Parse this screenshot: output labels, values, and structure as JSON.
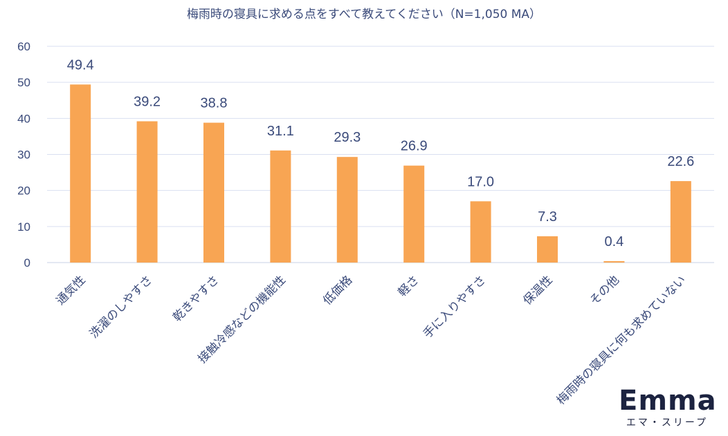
{
  "logo": {
    "text": "Emma",
    "subtext": "エマ・スリープ"
  },
  "chart_data": {
    "type": "bar",
    "title": "梅雨時の寝具に求める点をすべて教えてください（N=1,050 MA）",
    "categories": [
      "通気性",
      "洗濯のしやすさ",
      "乾きやすさ",
      "接触冷感などの機能性",
      "低価格",
      "軽さ",
      "手に入りやすさ",
      "保温性",
      "その他",
      "梅雨時の寝具に何も求めていない"
    ],
    "values": [
      49.4,
      39.2,
      38.8,
      31.1,
      29.3,
      26.9,
      17.0,
      7.3,
      0.4,
      22.6
    ],
    "value_labels": [
      "49.4",
      "39.2",
      "38.8",
      "31.1",
      "29.3",
      "26.9",
      "17.0",
      "7.3",
      "0.4",
      "22.6"
    ],
    "ylim": [
      0,
      60
    ],
    "yticks": [
      0,
      10,
      20,
      30,
      40,
      50,
      60
    ],
    "grid": true,
    "bar_color": "#f8a553",
    "grid_color": "#d9dff0",
    "text_color": "#3a4a7a"
  }
}
